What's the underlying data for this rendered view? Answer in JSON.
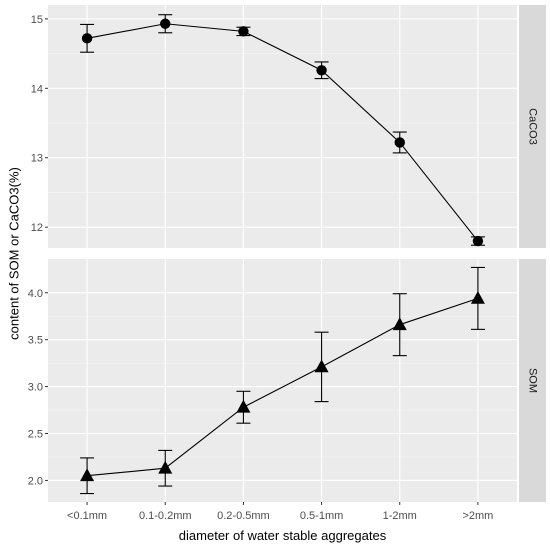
{
  "chart_data": {
    "type": "line",
    "xlabel": "diameter of water stable aggregates",
    "ylabel": "content of SOM or CaCO3(%)",
    "categories": [
      "<0.1mm",
      "0.1-0.2mm",
      "0.2-0.5mm",
      "0.5-1mm",
      "1-2mm",
      ">2mm"
    ],
    "grid": true,
    "legend": "none",
    "panels": [
      {
        "strip": "CaCO3",
        "marker": "circle",
        "ylim": [
          11.7,
          15.2
        ],
        "yticks": [
          12,
          13,
          14,
          15
        ],
        "yticklabels": [
          "12",
          "13",
          "14",
          "15"
        ],
        "series": [
          {
            "values": [
              14.72,
              14.93,
              14.82,
              14.26,
              13.22,
              11.8
            ],
            "lower": [
              14.52,
              14.8,
              14.76,
              14.14,
              13.07,
              11.74
            ],
            "upper": [
              14.92,
              15.06,
              14.88,
              14.38,
              13.37,
              11.86
            ]
          }
        ]
      },
      {
        "strip": "SOM",
        "marker": "triangle",
        "ylim": [
          1.77,
          4.36
        ],
        "yticks": [
          2.0,
          2.5,
          3.0,
          3.5,
          4.0
        ],
        "yticklabels": [
          "2.0",
          "2.5",
          "3.0",
          "3.5",
          "4.0"
        ],
        "series": [
          {
            "values": [
              2.05,
              2.13,
              2.78,
              3.21,
              3.66,
              3.94
            ],
            "lower": [
              1.86,
              1.94,
              2.61,
              2.84,
              3.33,
              3.61
            ],
            "upper": [
              2.24,
              2.32,
              2.95,
              3.58,
              3.99,
              4.27
            ]
          }
        ]
      }
    ],
    "colors": {
      "panel_bg": "#ebebeb",
      "grid_major": "#ffffff",
      "strip_bg": "#d9d9d9",
      "line": "#000000",
      "tick_text": "#4d4d4d"
    }
  }
}
